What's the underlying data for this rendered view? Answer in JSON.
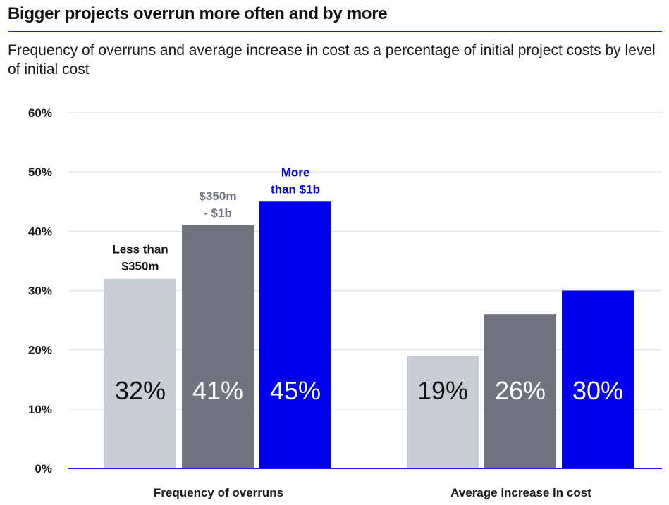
{
  "header": {
    "title": "Bigger projects overrun more often and by more",
    "subtitle": "Frequency of overruns and average increase in cost as a percentage of initial project costs by level of initial cost"
  },
  "colors": {
    "accent": "#1a1aff",
    "series_light": "#c9ced6",
    "series_mid": "#70747f",
    "series_blue": "#0000ee",
    "grid": "#e4e6ef"
  },
  "chart_data": {
    "type": "bar",
    "title": "Bigger projects overrun more often and by more",
    "subtitle": "Frequency of overruns and average increase in cost as a percentage of initial project costs by level of initial cost",
    "categories": [
      "Frequency of overruns",
      "Average increase in cost"
    ],
    "series": [
      {
        "name": "Less than $350m",
        "label_lines": [
          "Less than",
          "$350m"
        ],
        "values": [
          32,
          19
        ],
        "value_labels": [
          "32%",
          "19%"
        ],
        "color": "#c9ced6",
        "label_color": "#111111",
        "name_color": "#111111"
      },
      {
        "name": "$350m - $1b",
        "label_lines": [
          "$350m",
          "-  $1b"
        ],
        "values": [
          41,
          26
        ],
        "value_labels": [
          "41%",
          "26%"
        ],
        "color": "#70747f",
        "label_color": "#ffffff",
        "name_color": "#70747f"
      },
      {
        "name": "More than $1b",
        "label_lines": [
          "More",
          "than $1b"
        ],
        "values": [
          45,
          30
        ],
        "value_labels": [
          "45%",
          "30%"
        ],
        "color": "#0000ee",
        "label_color": "#ffffff",
        "name_color": "#0000ee"
      }
    ],
    "ylim": [
      0,
      60
    ],
    "yticks": [
      0,
      10,
      20,
      30,
      40,
      50,
      60
    ],
    "ytick_labels": [
      "0%",
      "10%",
      "20%",
      "30%",
      "40%",
      "50%",
      "60%"
    ],
    "grid": true,
    "legend": "series names shown above bars in the first group"
  }
}
